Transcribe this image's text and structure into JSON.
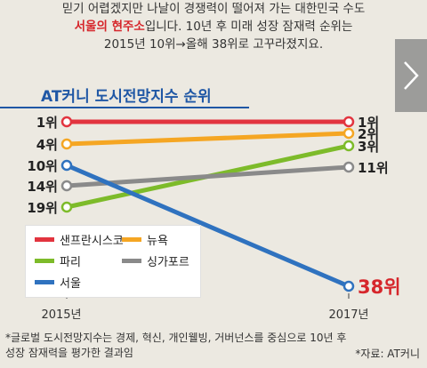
{
  "intro": {
    "line1": "믿기 어렵겠지만 나날이 경쟁력이 떨어져 가는 대한민국 수도",
    "line2_highlight": "서울의 현주소",
    "line2_rest": "입니다. 10년 후 미래 성장 잠재력 순위는",
    "line3": "2015년 10위→올해 38위로 고꾸라졌지요."
  },
  "colors": {
    "background": "#ece9e1",
    "accent_red": "#d6262b",
    "title_blue": "#1f57a5",
    "next_arrow_bg": "#8c8c8c"
  },
  "next_icon": "chevron-right-icon",
  "chart_data": {
    "type": "line",
    "title": "AT커니 도시전망지수 순위",
    "x": [
      "2015년",
      "2017년"
    ],
    "y_scale": "rank (reversed, 1 at top)",
    "series": [
      {
        "name": "샌프란시스코",
        "color": "#e2343f",
        "values": [
          1,
          1
        ],
        "start_label": "1위",
        "end_label": "1위"
      },
      {
        "name": "뉴욕",
        "color": "#f5a623",
        "values": [
          4,
          2
        ],
        "start_label": "4위",
        "end_label": "2위"
      },
      {
        "name": "파리",
        "color": "#7dbb2a",
        "values": [
          19,
          3
        ],
        "start_label": "19위",
        "end_label": "3위"
      },
      {
        "name": "싱가포르",
        "color": "#8a8a8a",
        "values": [
          14,
          11
        ],
        "start_label": "14위",
        "end_label": "11위"
      },
      {
        "name": "서울",
        "color": "#2f72bf",
        "values": [
          10,
          38
        ],
        "start_label": "10위",
        "end_label": "38위",
        "highlight_end": true
      }
    ]
  },
  "footnote": {
    "line1": "*글로벌 도시전망지수는 경제,  혁신, 개인웰빙, 거버넌스를 중심으로 10년 후",
    "line2": "성장 잠재력을 평가한 결과임",
    "source": "*자료: AT커니"
  }
}
